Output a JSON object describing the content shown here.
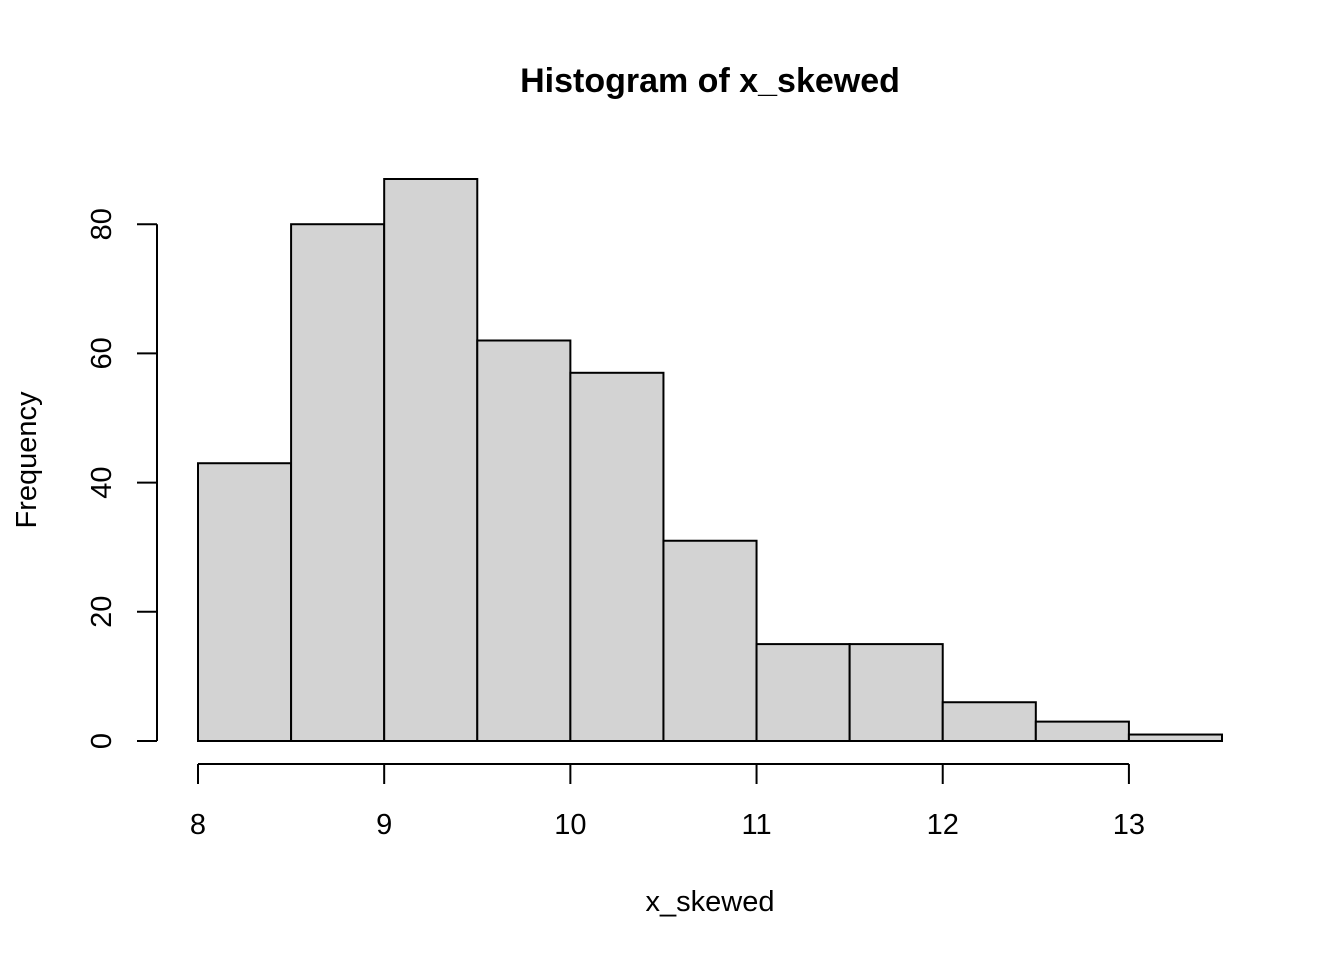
{
  "chart_data": {
    "type": "bar",
    "title": "Histogram of x_skewed",
    "xlabel": "x_skewed",
    "ylabel": "Frequency",
    "bins": [
      {
        "x0": 8.0,
        "x1": 8.5,
        "count": 43
      },
      {
        "x0": 8.5,
        "x1": 9.0,
        "count": 80
      },
      {
        "x0": 9.0,
        "x1": 9.5,
        "count": 87
      },
      {
        "x0": 9.5,
        "x1": 10.0,
        "count": 62
      },
      {
        "x0": 10.0,
        "x1": 10.5,
        "count": 57
      },
      {
        "x0": 10.5,
        "x1": 11.0,
        "count": 31
      },
      {
        "x0": 11.0,
        "x1": 11.5,
        "count": 15
      },
      {
        "x0": 11.5,
        "x1": 12.0,
        "count": 15
      },
      {
        "x0": 12.0,
        "x1": 12.5,
        "count": 6
      },
      {
        "x0": 12.5,
        "x1": 13.0,
        "count": 3
      },
      {
        "x0": 13.0,
        "x1": 13.5,
        "count": 1
      }
    ],
    "xlim": [
      8,
      13.5
    ],
    "ylim": [
      0,
      87
    ],
    "x_ticks": [
      8,
      9,
      10,
      11,
      12,
      13
    ],
    "x_tick_labels": [
      "8",
      "9",
      "10",
      "11",
      "12",
      "13"
    ],
    "y_ticks": [
      0,
      20,
      40,
      60,
      80
    ],
    "y_tick_labels": [
      "0",
      "20",
      "40",
      "60",
      "80"
    ],
    "bar_fill": "#d3d3d3",
    "bar_stroke": "#000000",
    "grid": false,
    "legend": "none"
  }
}
